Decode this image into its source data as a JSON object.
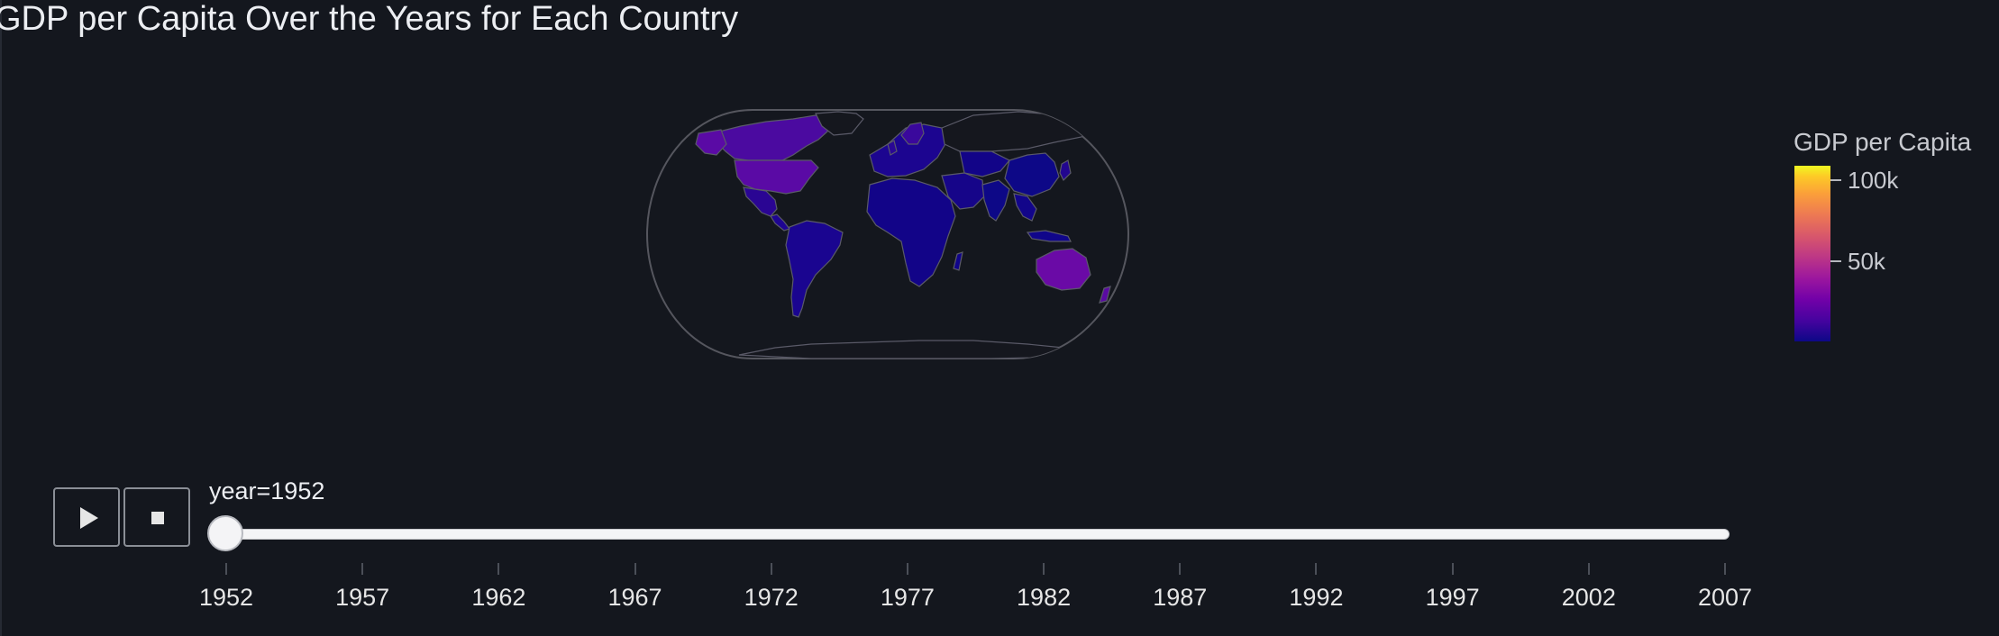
{
  "title": "GDP per Capita Over the Years for Each Country",
  "chart_data": {
    "type": "choropleth",
    "title": "GDP per Capita Over the Years for Each Country",
    "projection": "natural earth",
    "frame": "year",
    "current_year": 1952,
    "colorscale": "plasma",
    "colorbar": {
      "title": "GDP per Capita",
      "range": [
        0,
        108000
      ],
      "ticks": [
        {
          "value": 100000,
          "label": "100k"
        },
        {
          "value": 50000,
          "label": "50k"
        }
      ]
    },
    "colors": {
      "background": "#14171e",
      "land_border": "#4a4a55",
      "outline": "#5a5a60"
    }
  },
  "slider": {
    "label": "year=1952",
    "current_value": 1952,
    "years": [
      "1952",
      "1957",
      "1962",
      "1967",
      "1972",
      "1977",
      "1982",
      "1987",
      "1992",
      "1997",
      "2002",
      "2007"
    ]
  },
  "controls": {
    "play_icon": "play-icon",
    "stop_icon": "stop-icon"
  }
}
